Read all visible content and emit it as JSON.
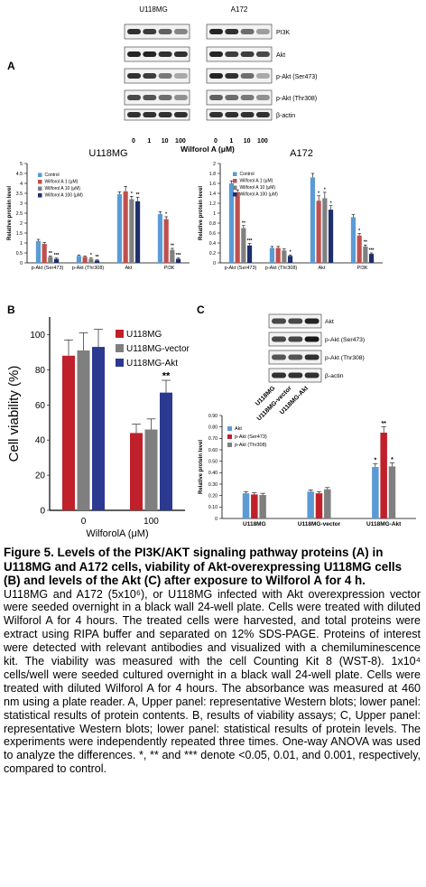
{
  "panelA": {
    "letter": "A",
    "blot_u118_title": "U118MG",
    "blot_a172_title": "A172",
    "blot_bands": [
      "PI3K",
      "Akt",
      "p-Akt (Ser473)",
      "p-Akt (Thr308)",
      "β-actin"
    ],
    "blot_doses": [
      "0",
      "1",
      "10",
      "100"
    ],
    "treatment_label": "Wilforol A (μM)"
  },
  "panelB": {
    "letter": "B"
  },
  "panelC": {
    "letter": "C",
    "blot_bands": [
      "Akt",
      "p-Akt (Ser473)",
      "p-Akt (Thr308)",
      "β-actin"
    ],
    "blot_lanes": [
      "U118MG",
      "U118MG-vector",
      "U118MG-Akt"
    ]
  },
  "chart_data": [
    {
      "type": "bar",
      "title": "U118MG",
      "ylabel": "Relative protein level",
      "categories": [
        "p-Akt (Ser473)",
        "p-Akt (Thr308)",
        "Akt",
        "PI3K"
      ],
      "ylim": [
        0,
        5
      ],
      "yticks": [
        "0",
        "0.5",
        "1",
        "1.5",
        "2",
        "2.5",
        "3",
        "3.5",
        "4",
        "4.5",
        "5"
      ],
      "legend": "top-left",
      "series": [
        {
          "name": "Control",
          "color": "#5b9bd5",
          "values": [
            1.1,
            0.35,
            3.45,
            2.45
          ],
          "errors": [
            0.08,
            0.05,
            0.12,
            0.12
          ],
          "marks": [
            "",
            "",
            "",
            ""
          ]
        },
        {
          "name": "Wilforol A 1 (μM)",
          "color": "#c0504d",
          "values": [
            0.95,
            0.3,
            3.6,
            2.2
          ],
          "errors": [
            0.08,
            0.04,
            0.25,
            0.12
          ],
          "marks": [
            "",
            "",
            "",
            "*"
          ]
        },
        {
          "name": "Wilforol A 10 (μM)",
          "color": "#808080",
          "values": [
            0.3,
            0.2,
            3.2,
            0.65
          ],
          "errors": [
            0.05,
            0.04,
            0.15,
            0.08
          ],
          "marks": [
            "**",
            "*",
            "*",
            "**"
          ]
        },
        {
          "name": "Wilforol A 100 (μM)",
          "color": "#1f2f6b",
          "values": [
            0.2,
            0.12,
            3.1,
            0.2
          ],
          "errors": [
            0.04,
            0.03,
            0.2,
            0.04
          ],
          "marks": [
            "***",
            "**",
            "**",
            "***"
          ]
        }
      ]
    },
    {
      "type": "bar",
      "title": "A172",
      "ylabel": "Relative protein level",
      "categories": [
        "p-Akt (Ser473)",
        "p-Akt (Thr308)",
        "Akt",
        "PI3K"
      ],
      "ylim": [
        0,
        2
      ],
      "yticks": [
        "0",
        "0.2",
        "0.4",
        "0.6",
        "0.8",
        "1",
        "1.2",
        "1.4",
        "1.6",
        "1.8",
        "2"
      ],
      "legend": "top-left",
      "series": [
        {
          "name": "Control",
          "color": "#5b9bd5",
          "values": [
            1.6,
            0.3,
            1.72,
            0.92
          ],
          "errors": [
            0.05,
            0.03,
            0.08,
            0.05
          ],
          "marks": [
            "",
            "",
            "",
            ""
          ]
        },
        {
          "name": "Wilforol A 1 (μM)",
          "color": "#c0504d",
          "values": [
            1.42,
            0.3,
            1.25,
            0.55
          ],
          "errors": [
            0.05,
            0.03,
            0.1,
            0.04
          ],
          "marks": [
            "",
            "",
            "*",
            "*"
          ]
        },
        {
          "name": "Wilforol A 10 (μM)",
          "color": "#808080",
          "values": [
            0.7,
            0.25,
            1.3,
            0.33
          ],
          "errors": [
            0.05,
            0.03,
            0.12,
            0.03
          ],
          "marks": [
            "**",
            "",
            "*",
            "**"
          ]
        },
        {
          "name": "Wilforol A 100 (μM)",
          "color": "#1f2f6b",
          "values": [
            0.35,
            0.14,
            1.07,
            0.18
          ],
          "errors": [
            0.04,
            0.02,
            0.08,
            0.02
          ],
          "marks": [
            "***",
            "*",
            "*",
            "***"
          ]
        }
      ]
    },
    {
      "type": "bar",
      "ylabel": "Cell viability (%)",
      "xlabel": "WilforolA (μM)",
      "categories": [
        "0",
        "100"
      ],
      "ylim": [
        0,
        110
      ],
      "yticks": [
        "0",
        "20",
        "40",
        "60",
        "80",
        "100"
      ],
      "legend": "top-right",
      "series": [
        {
          "name": "U118MG",
          "color": "#c0202a",
          "values": [
            88,
            44
          ],
          "errors": [
            9,
            5
          ],
          "marks": [
            "",
            ""
          ]
        },
        {
          "name": "U118MG-vector",
          "color": "#7f7f7f",
          "values": [
            91,
            46
          ],
          "errors": [
            10,
            6
          ],
          "marks": [
            "",
            ""
          ]
        },
        {
          "name": "U118MG-Akt",
          "color": "#2b3990",
          "values": [
            93,
            67
          ],
          "errors": [
            10,
            7
          ],
          "marks": [
            "",
            "**"
          ]
        }
      ]
    },
    {
      "type": "bar",
      "ylabel": "Relative protein level",
      "categories": [
        "U118MG",
        "U118MG-vector",
        "U118MG-Akt"
      ],
      "ylim": [
        0,
        0.9
      ],
      "yticks": [
        "0",
        "0.10",
        "0.20",
        "0.30",
        "0.40",
        "0.50",
        "0.60",
        "0.70",
        "0.80",
        "0.90"
      ],
      "legend": "top-left",
      "series": [
        {
          "name": "Akt",
          "color": "#5b9bd5",
          "values": [
            0.22,
            0.235,
            0.45
          ],
          "errors": [
            0.015,
            0.015,
            0.03
          ],
          "marks": [
            "",
            "",
            "*"
          ]
        },
        {
          "name": "p-Akt (Ser473)",
          "color": "#c0202a",
          "values": [
            0.21,
            0.22,
            0.75
          ],
          "errors": [
            0.015,
            0.015,
            0.05
          ],
          "marks": [
            "",
            "",
            "**"
          ]
        },
        {
          "name": "p-Akt (Thr308)",
          "color": "#7f7f7f",
          "values": [
            0.205,
            0.255,
            0.455
          ],
          "errors": [
            0.015,
            0.015,
            0.03
          ],
          "marks": [
            "",
            "",
            "*"
          ]
        }
      ]
    }
  ],
  "caption": {
    "title": "Figure 5. Levels of the PI3K/AKT signaling pathway proteins (A) in U118MG and A172 cells, viability of Akt-overexpressing U118MG cells (B) and levels of the Akt (C) after exposure to Wilforol A for 4 h.",
    "body": "U118MG and A172 (5x10⁶), or U118MG infected with Akt overexpression vector were seeded overnight in a black wall 24-well plate. Cells were treated with diluted Wilforol A for 4 hours. The treated cells were harvested, and total proteins were extract using RIPA buffer and separated on 12% SDS-PAGE. Proteins of interest were detected with relevant antibodies and visualized with a chemiluminescence kit. The viability was measured with the cell Counting Kit 8 (WST-8). 1x10⁴ cells/well were seeded cultured overnight in a black wall 24-well plate. Cells were treated with diluted Wilforol A for 4 hours. The absorbance was measured at 460 nm using a plate reader. A, Upper panel: representative Western blots; lower panel: statistical results of protein contents. B, results of viability assays; C, Upper panel: representative Western blots; lower panel: statistical results of protein levels. The experiments were independently repeated three times. One-way ANOVA was used to analyze the differences. *, ** and *** denote <0.05, 0.01, and 0.001, respectively, compared to control."
  }
}
